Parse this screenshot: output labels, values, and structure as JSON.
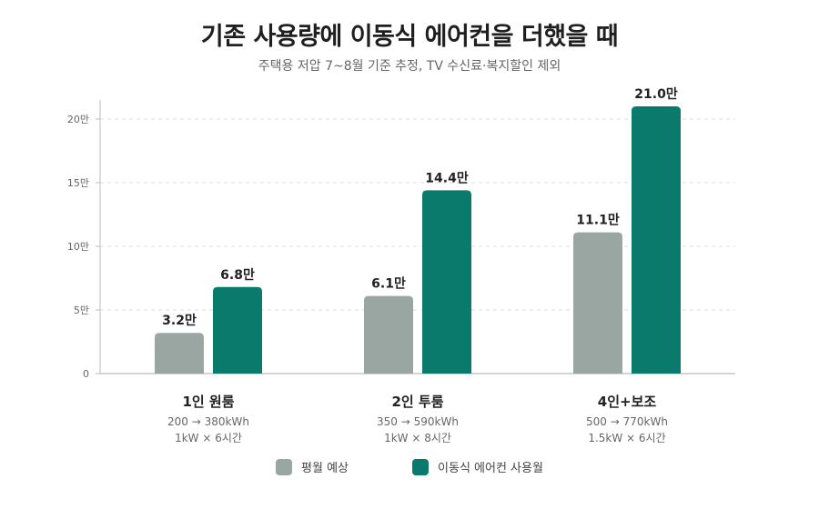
{
  "header": {
    "title": "기존 사용량에 이동식 에어컨을 더했을 때",
    "subtitle": "주택용 저압 7~8월 기준 추정, TV 수신료·복지할인 제외"
  },
  "colors": {
    "baseline": "#9aa6a1",
    "with_ac": "#0a7a6c",
    "grid": "#dddddd",
    "axis": "#bbbbbb"
  },
  "legend": [
    {
      "name": "평월 예상",
      "color": "#9aa6a1"
    },
    {
      "name": "이동식 에어컨 사용월",
      "color": "#0a7a6c"
    }
  ],
  "chart_data": {
    "type": "bar",
    "ylim": [
      0,
      21.5
    ],
    "yticks": [
      0,
      5,
      10,
      15,
      20
    ],
    "ytick_labels": [
      "0",
      "5만",
      "10만",
      "15만",
      "20만"
    ],
    "grid": true,
    "legend_position": "bottom",
    "categories": [
      {
        "label": "1인 원룸",
        "note1": "200 → 380kWh",
        "note2": "1kW × 6시간"
      },
      {
        "label": "2인 투룸",
        "note1": "350 → 590kWh",
        "note2": "1kW × 8시간"
      },
      {
        "label": "4인+보조",
        "note1": "500 → 770kWh",
        "note2": "1.5kW × 6시간"
      }
    ],
    "series": [
      {
        "name": "평월 예상",
        "values": [
          3.2,
          6.1,
          11.1
        ],
        "labels": [
          "3.2만",
          "6.1만",
          "11.1만"
        ]
      },
      {
        "name": "이동식 에어컨 사용월",
        "values": [
          6.8,
          14.4,
          21.0
        ],
        "labels": [
          "6.8만",
          "14.4만",
          "21.0만"
        ]
      }
    ]
  }
}
